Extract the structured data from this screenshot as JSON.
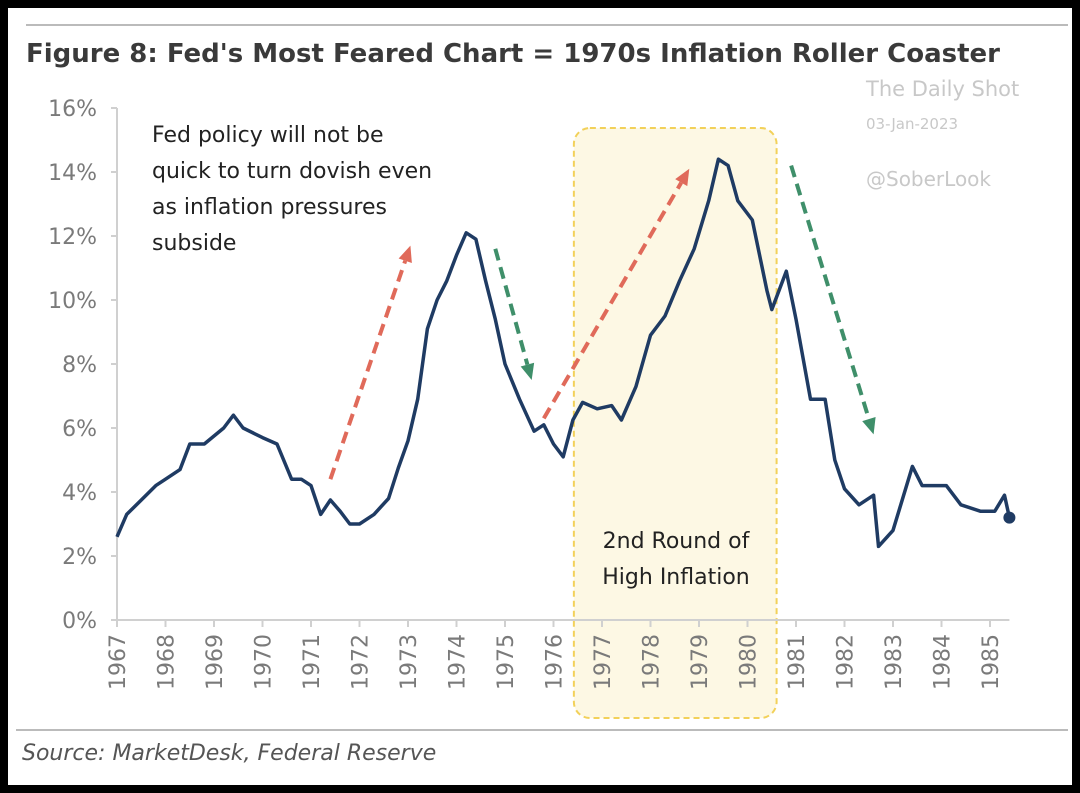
{
  "chart_data": {
    "type": "line",
    "title": "Figure 8: Fed's Most Feared Chart = 1970s Inflation Roller Coaster",
    "source": "Source: MarketDesk, Federal Reserve",
    "watermark": {
      "line1": "The Daily Shot",
      "line2": "03-Jan-2023",
      "line3": "@SoberLook"
    },
    "xlabel": "",
    "ylabel": "",
    "xlim": [
      1967,
      1985.4
    ],
    "ylim": [
      0,
      16
    ],
    "y_ticks": [
      "0%",
      "2%",
      "4%",
      "6%",
      "8%",
      "10%",
      "12%",
      "14%",
      "16%"
    ],
    "y_tick_values": [
      0,
      2,
      4,
      6,
      8,
      10,
      12,
      14,
      16
    ],
    "x_ticks": [
      "1967",
      "1968",
      "1969",
      "1970",
      "1971",
      "1972",
      "1973",
      "1974",
      "1975",
      "1976",
      "1977",
      "1978",
      "1979",
      "1980",
      "1981",
      "1982",
      "1983",
      "1984",
      "1985"
    ],
    "grid": false,
    "line_color": "#1f3b63",
    "series": [
      {
        "x": [
          1967.0,
          1967.2,
          1967.5,
          1967.8,
          1968.0,
          1968.3,
          1968.5,
          1968.8,
          1969.0,
          1969.2,
          1969.4,
          1969.6,
          1970.0,
          1970.3,
          1970.6,
          1970.8,
          1971.0,
          1971.2,
          1971.4,
          1971.6,
          1971.8,
          1972.0,
          1972.3,
          1972.6,
          1972.8,
          1973.0,
          1973.2,
          1973.4,
          1973.6,
          1973.8,
          1974.0,
          1974.2,
          1974.4,
          1974.6,
          1974.8,
          1975.0,
          1975.3,
          1975.6,
          1975.8,
          1976.0,
          1976.2,
          1976.4,
          1976.6,
          1976.9,
          1977.2,
          1977.4,
          1977.7,
          1978.0,
          1978.3,
          1978.6,
          1978.9,
          1979.2,
          1979.4,
          1979.6,
          1979.8,
          1980.1,
          1980.4,
          1980.5,
          1980.8,
          1981.0,
          1981.3,
          1981.6,
          1981.8,
          1982.0,
          1982.3,
          1982.6,
          1982.7,
          1983.0,
          1983.4,
          1983.6,
          1984.1,
          1984.4,
          1984.8,
          1985.1,
          1985.3,
          1985.4
        ],
        "values": [
          2.6,
          3.3,
          3.75,
          4.2,
          4.4,
          4.7,
          5.5,
          5.5,
          5.75,
          6.0,
          6.4,
          6.0,
          5.7,
          5.5,
          4.4,
          4.4,
          4.2,
          3.3,
          3.75,
          3.4,
          3.0,
          3.0,
          3.3,
          3.8,
          4.75,
          5.6,
          6.9,
          9.1,
          10.0,
          10.6,
          11.4,
          12.1,
          11.9,
          10.6,
          9.4,
          8.0,
          6.9,
          5.9,
          6.1,
          5.5,
          5.1,
          6.25,
          6.8,
          6.6,
          6.7,
          6.25,
          7.3,
          8.9,
          9.5,
          10.6,
          11.6,
          13.1,
          14.4,
          14.2,
          13.1,
          12.5,
          10.3,
          9.7,
          10.9,
          9.4,
          6.9,
          6.9,
          5.0,
          4.1,
          3.6,
          3.9,
          2.3,
          2.8,
          4.8,
          4.2,
          4.2,
          3.6,
          3.4,
          3.4,
          3.9,
          3.2
        ]
      }
    ],
    "annotations": {
      "policy_note": [
        "Fed policy will not be",
        "quick to turn dovish even",
        "as inflation pressures",
        "subside"
      ],
      "box_label": [
        "2nd Round of",
        "High Inflation"
      ],
      "box_range": [
        1976.42,
        1980.6
      ],
      "box_color": "#f2d15a",
      "arrows": [
        {
          "color": "#e06a5a",
          "from": [
            1971.4,
            4.4
          ],
          "to": [
            1973.05,
            11.7
          ]
        },
        {
          "color": "#3f8f6a",
          "from": [
            1974.8,
            11.6
          ],
          "to": [
            1975.55,
            7.5
          ]
        },
        {
          "color": "#e06a5a",
          "from": [
            1975.8,
            6.3
          ],
          "to": [
            1978.8,
            14.1
          ]
        },
        {
          "color": "#3f8f6a",
          "from": [
            1980.9,
            14.2
          ],
          "to": [
            1982.6,
            5.8
          ]
        }
      ]
    }
  }
}
